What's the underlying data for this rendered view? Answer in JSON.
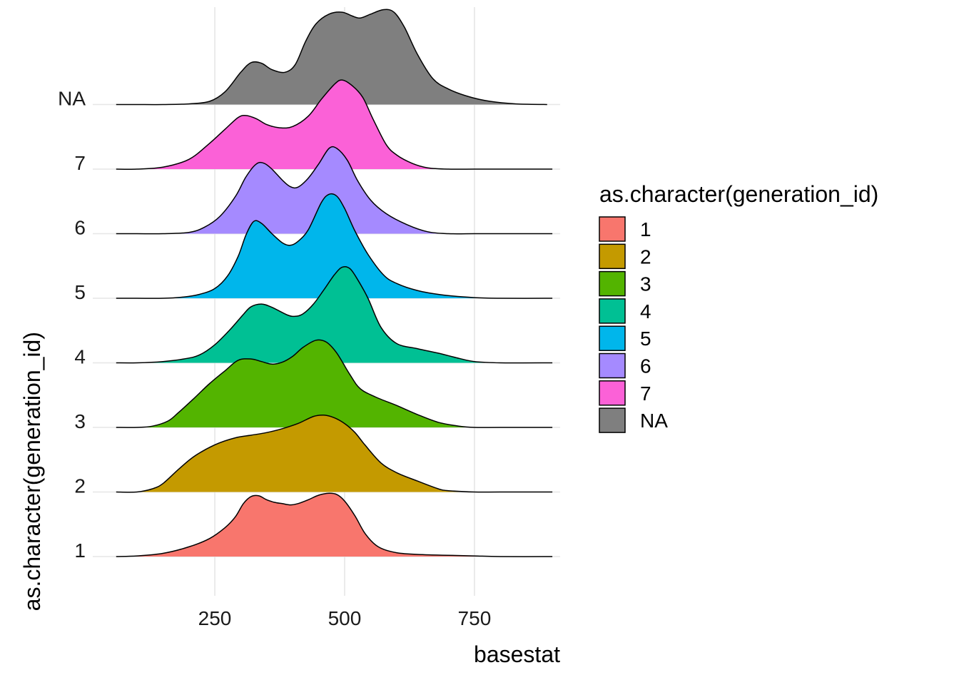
{
  "chart_data": {
    "type": "ridgeline",
    "xlabel": "basestat",
    "ylabel": "as.character(generation_id)",
    "xlim": [
      15,
      915
    ],
    "x_ticks": [
      250,
      500,
      750
    ],
    "x_tick_labels": [
      "250",
      "500",
      "750"
    ],
    "grid": true,
    "legend": {
      "title": "as.character(generation_id)",
      "position": "right"
    },
    "series": [
      {
        "name": "1",
        "color": "#F8766D",
        "points": [
          [
            60,
            0.0
          ],
          [
            100,
            0.01
          ],
          [
            150,
            0.05
          ],
          [
            200,
            0.15
          ],
          [
            240,
            0.28
          ],
          [
            270,
            0.45
          ],
          [
            290,
            0.62
          ],
          [
            305,
            0.82
          ],
          [
            320,
            0.93
          ],
          [
            335,
            0.94
          ],
          [
            350,
            0.88
          ],
          [
            365,
            0.84
          ],
          [
            380,
            0.82
          ],
          [
            395,
            0.8
          ],
          [
            410,
            0.82
          ],
          [
            430,
            0.88
          ],
          [
            450,
            0.95
          ],
          [
            470,
            0.98
          ],
          [
            485,
            0.96
          ],
          [
            500,
            0.86
          ],
          [
            520,
            0.63
          ],
          [
            540,
            0.35
          ],
          [
            565,
            0.15
          ],
          [
            600,
            0.06
          ],
          [
            650,
            0.03
          ],
          [
            700,
            0.02
          ],
          [
            750,
            0.01
          ],
          [
            800,
            0.0
          ],
          [
            900,
            0.0
          ]
        ]
      },
      {
        "name": "2",
        "color": "#C49A00",
        "points": [
          [
            60,
            0.0
          ],
          [
            100,
            0.0
          ],
          [
            130,
            0.05
          ],
          [
            150,
            0.13
          ],
          [
            180,
            0.35
          ],
          [
            210,
            0.55
          ],
          [
            250,
            0.73
          ],
          [
            290,
            0.84
          ],
          [
            320,
            0.88
          ],
          [
            350,
            0.92
          ],
          [
            380,
            0.98
          ],
          [
            410,
            1.06
          ],
          [
            440,
            1.17
          ],
          [
            460,
            1.19
          ],
          [
            480,
            1.15
          ],
          [
            500,
            1.06
          ],
          [
            520,
            0.92
          ],
          [
            540,
            0.72
          ],
          [
            570,
            0.45
          ],
          [
            600,
            0.3
          ],
          [
            640,
            0.17
          ],
          [
            680,
            0.05
          ],
          [
            700,
            0.02
          ],
          [
            750,
            0.0
          ],
          [
            800,
            0.0
          ],
          [
            900,
            0.0
          ]
        ]
      },
      {
        "name": "3",
        "color": "#53B400",
        "points": [
          [
            60,
            0.0
          ],
          [
            100,
            0.0
          ],
          [
            130,
            0.02
          ],
          [
            160,
            0.1
          ],
          [
            180,
            0.23
          ],
          [
            210,
            0.45
          ],
          [
            240,
            0.68
          ],
          [
            270,
            0.88
          ],
          [
            295,
            1.04
          ],
          [
            320,
            1.06
          ],
          [
            340,
            1.02
          ],
          [
            360,
            0.98
          ],
          [
            380,
            1.01
          ],
          [
            400,
            1.1
          ],
          [
            420,
            1.24
          ],
          [
            445,
            1.35
          ],
          [
            465,
            1.32
          ],
          [
            485,
            1.15
          ],
          [
            510,
            0.82
          ],
          [
            530,
            0.6
          ],
          [
            560,
            0.47
          ],
          [
            600,
            0.34
          ],
          [
            640,
            0.2
          ],
          [
            680,
            0.08
          ],
          [
            720,
            0.02
          ],
          [
            750,
            0.0
          ],
          [
            800,
            0.0
          ],
          [
            900,
            0.0
          ]
        ]
      },
      {
        "name": "4",
        "color": "#00C094",
        "points": [
          [
            60,
            0.0
          ],
          [
            100,
            0.0
          ],
          [
            150,
            0.02
          ],
          [
            190,
            0.06
          ],
          [
            220,
            0.12
          ],
          [
            250,
            0.28
          ],
          [
            280,
            0.52
          ],
          [
            305,
            0.75
          ],
          [
            320,
            0.87
          ],
          [
            340,
            0.91
          ],
          [
            360,
            0.86
          ],
          [
            390,
            0.74
          ],
          [
            405,
            0.72
          ],
          [
            420,
            0.76
          ],
          [
            440,
            0.91
          ],
          [
            460,
            1.13
          ],
          [
            480,
            1.36
          ],
          [
            495,
            1.48
          ],
          [
            510,
            1.46
          ],
          [
            525,
            1.29
          ],
          [
            545,
            1.0
          ],
          [
            570,
            0.55
          ],
          [
            600,
            0.3
          ],
          [
            640,
            0.22
          ],
          [
            680,
            0.15
          ],
          [
            720,
            0.07
          ],
          [
            750,
            0.02
          ],
          [
            800,
            0.0
          ],
          [
            900,
            0.0
          ]
        ]
      },
      {
        "name": "5",
        "color": "#00B6EB",
        "points": [
          [
            60,
            0.0
          ],
          [
            100,
            0.0
          ],
          [
            150,
            0.0
          ],
          [
            190,
            0.02
          ],
          [
            220,
            0.06
          ],
          [
            250,
            0.15
          ],
          [
            275,
            0.35
          ],
          [
            295,
            0.65
          ],
          [
            310,
            0.98
          ],
          [
            325,
            1.19
          ],
          [
            340,
            1.16
          ],
          [
            360,
            1.0
          ],
          [
            380,
            0.86
          ],
          [
            395,
            0.82
          ],
          [
            410,
            0.88
          ],
          [
            430,
            1.06
          ],
          [
            455,
            1.48
          ],
          [
            470,
            1.61
          ],
          [
            485,
            1.58
          ],
          [
            500,
            1.39
          ],
          [
            520,
            1.04
          ],
          [
            545,
            0.68
          ],
          [
            575,
            0.36
          ],
          [
            600,
            0.23
          ],
          [
            640,
            0.12
          ],
          [
            690,
            0.05
          ],
          [
            750,
            0.01
          ],
          [
            800,
            0.0
          ],
          [
            900,
            0.0
          ]
        ]
      },
      {
        "name": "6",
        "color": "#A58AFF",
        "points": [
          [
            60,
            0.0
          ],
          [
            100,
            0.0
          ],
          [
            150,
            0.0
          ],
          [
            200,
            0.02
          ],
          [
            230,
            0.1
          ],
          [
            260,
            0.27
          ],
          [
            290,
            0.58
          ],
          [
            310,
            0.88
          ],
          [
            330,
            1.08
          ],
          [
            345,
            1.09
          ],
          [
            360,
            1.0
          ],
          [
            380,
            0.83
          ],
          [
            395,
            0.73
          ],
          [
            410,
            0.72
          ],
          [
            430,
            0.86
          ],
          [
            450,
            1.08
          ],
          [
            470,
            1.32
          ],
          [
            485,
            1.32
          ],
          [
            505,
            1.14
          ],
          [
            525,
            0.82
          ],
          [
            550,
            0.52
          ],
          [
            580,
            0.31
          ],
          [
            620,
            0.14
          ],
          [
            660,
            0.03
          ],
          [
            700,
            0.0
          ],
          [
            750,
            0.0
          ],
          [
            800,
            0.0
          ],
          [
            900,
            0.0
          ]
        ]
      },
      {
        "name": "7",
        "color": "#FB61D7",
        "points": [
          [
            60,
            0.0
          ],
          [
            100,
            0.0
          ],
          [
            150,
            0.03
          ],
          [
            200,
            0.15
          ],
          [
            240,
            0.4
          ],
          [
            270,
            0.62
          ],
          [
            295,
            0.8
          ],
          [
            310,
            0.83
          ],
          [
            330,
            0.78
          ],
          [
            350,
            0.69
          ],
          [
            375,
            0.64
          ],
          [
            400,
            0.66
          ],
          [
            430,
            0.82
          ],
          [
            455,
            1.08
          ],
          [
            480,
            1.31
          ],
          [
            495,
            1.38
          ],
          [
            515,
            1.29
          ],
          [
            535,
            1.11
          ],
          [
            555,
            0.77
          ],
          [
            580,
            0.38
          ],
          [
            600,
            0.22
          ],
          [
            630,
            0.09
          ],
          [
            660,
            0.02
          ],
          [
            700,
            0.0
          ],
          [
            750,
            0.0
          ],
          [
            800,
            0.0
          ],
          [
            900,
            0.0
          ]
        ]
      },
      {
        "name": "NA",
        "color": "#7F7F7F",
        "points": [
          [
            60,
            0.0
          ],
          [
            100,
            0.0
          ],
          [
            150,
            0.0
          ],
          [
            200,
            0.01
          ],
          [
            240,
            0.05
          ],
          [
            270,
            0.2
          ],
          [
            300,
            0.5
          ],
          [
            320,
            0.65
          ],
          [
            340,
            0.64
          ],
          [
            360,
            0.54
          ],
          [
            385,
            0.5
          ],
          [
            405,
            0.62
          ],
          [
            425,
            0.98
          ],
          [
            445,
            1.25
          ],
          [
            470,
            1.4
          ],
          [
            495,
            1.43
          ],
          [
            515,
            1.37
          ],
          [
            530,
            1.34
          ],
          [
            550,
            1.4
          ],
          [
            575,
            1.47
          ],
          [
            595,
            1.43
          ],
          [
            615,
            1.2
          ],
          [
            640,
            0.78
          ],
          [
            670,
            0.4
          ],
          [
            700,
            0.24
          ],
          [
            740,
            0.12
          ],
          [
            780,
            0.05
          ],
          [
            830,
            0.01
          ],
          [
            890,
            0.0
          ]
        ]
      }
    ]
  }
}
